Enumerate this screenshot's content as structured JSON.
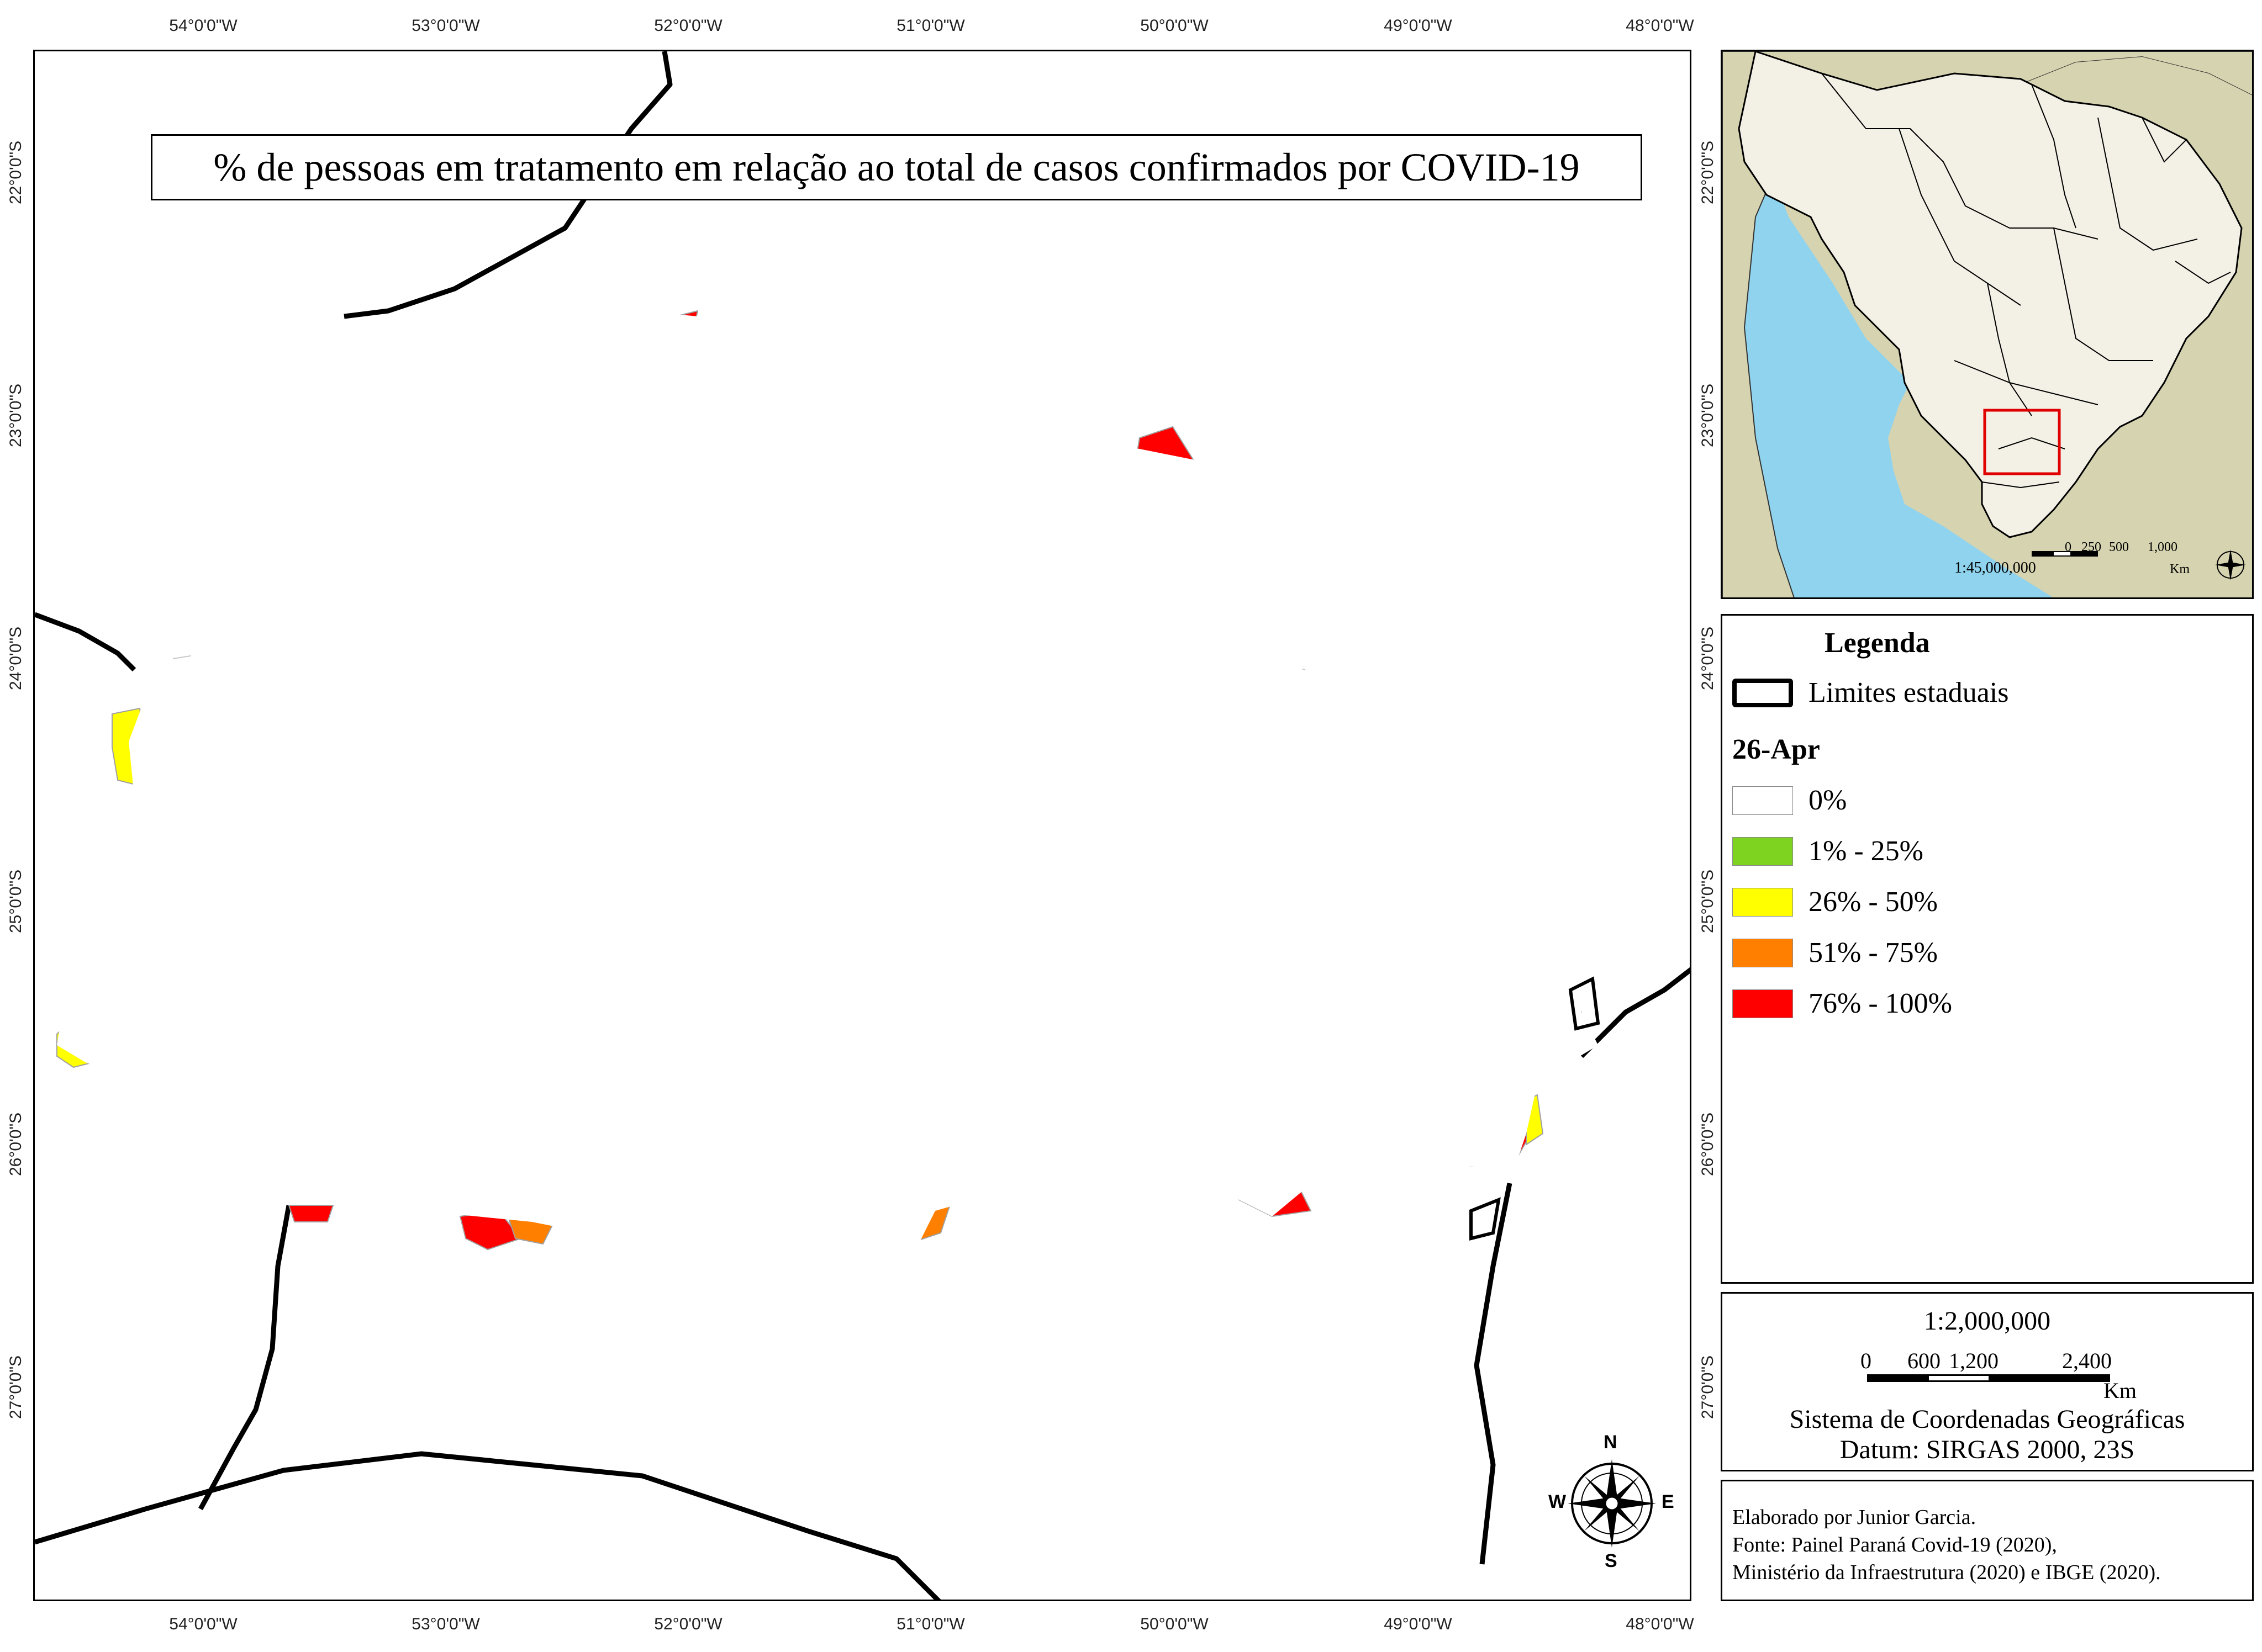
{
  "title": "% de pessoas em tratamento em relação ao total de casos confirmados por COVID-19",
  "longitude_labels": [
    "54°0'0\"W",
    "53°0'0\"W",
    "52°0'0\"W",
    "51°0'0\"W",
    "50°0'0\"W",
    "49°0'0\"W",
    "48°0'0\"W"
  ],
  "latitude_labels": [
    "22°0'0\"S",
    "23°0'0\"S",
    "24°0'0\"S",
    "25°0'0\"S",
    "26°0'0\"S",
    "27°0'0\"S"
  ],
  "colors": {
    "zero": "#ffffff",
    "c1_25": "#7ed321",
    "c26_50": "#ffff00",
    "c51_75": "#ff8000",
    "c76_100": "#ff0000",
    "ocean": "#8fd3ee",
    "continent": "#d6d3b0",
    "brazil": "#f3f1e6",
    "highlight": "#e00000"
  },
  "legend": {
    "title": "Legenda",
    "boundary_label": "Limites estaduais",
    "date": "26-Apr",
    "classes": [
      {
        "label": "0%",
        "color": "#ffffff"
      },
      {
        "label": "1% - 25%",
        "color": "#7ed321"
      },
      {
        "label": "26% - 50%",
        "color": "#ffff00"
      },
      {
        "label": "51% - 75%",
        "color": "#ff8000"
      },
      {
        "label": "76% - 100%",
        "color": "#ff0000"
      }
    ]
  },
  "inset": {
    "scale_ratio": "1:45,000,000",
    "scale_ticks": [
      "0",
      "250",
      "500",
      "1,000"
    ],
    "scale_unit": "Km"
  },
  "scale": {
    "ratio": "1:2,000,000",
    "ticks": [
      "0",
      "600",
      "1,200",
      "2,400"
    ],
    "unit": "Km"
  },
  "crs": {
    "line1": "Sistema de Coordenadas Geográficas",
    "line2": "Datum: SIRGAS 2000, 23S"
  },
  "compass": {
    "n": "N",
    "s": "S",
    "e": "E",
    "w": "W"
  },
  "credits": {
    "line1": "Elaborado por Junior Garcia.",
    "line2": "Fonte: Painel Paraná Covid-19 (2020),",
    "line3": "Ministério da Infraestrutura (2020) e IBGE (2020)."
  }
}
